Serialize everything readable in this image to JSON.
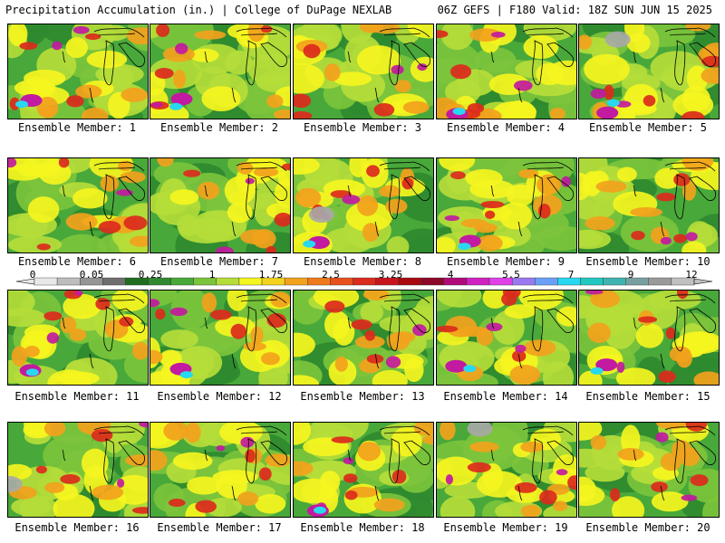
{
  "header": {
    "left": "Precipitation Accumulation (in.) | College of DuPage NEXLAB",
    "right": "06Z GEFS | F180 Valid: 18Z SUN JUN 15 2025"
  },
  "caption_prefix": "Ensemble Member: ",
  "members": [
    1,
    2,
    3,
    4,
    5,
    6,
    7,
    8,
    9,
    10,
    11,
    12,
    13,
    14,
    15,
    16,
    17,
    18,
    19,
    20
  ],
  "colorbar": {
    "labels": [
      "0",
      "0.05",
      "0.25",
      "1",
      "1.75",
      "2.5",
      "3.25",
      "4",
      "5.5",
      "7",
      "9",
      "12"
    ],
    "colors": [
      "#e8e8e8",
      "#bdbdbd",
      "#959595",
      "#6e6e6e",
      "#1f6e1f",
      "#2f8a2f",
      "#49a83a",
      "#7cc43c",
      "#b5dd3a",
      "#f5f520",
      "#f2d21c",
      "#f2a21c",
      "#ef7a1c",
      "#e8501c",
      "#dc2a1c",
      "#c8141c",
      "#a80a10",
      "#8c0828",
      "#b00a78",
      "#d020c0",
      "#e040e8",
      "#9a78f0",
      "#6aa0f8",
      "#28d8f0",
      "#20c8c0",
      "#40b4b0",
      "#78a0a0",
      "#9a9a9a",
      "#c0c0c0"
    ]
  },
  "map_colors": {
    "green_dark": "#2f8a2f",
    "green": "#49a83a",
    "green_light": "#7cc43c",
    "yellow_green": "#b5dd3a",
    "yellow": "#f5f520",
    "orange": "#f2a21c",
    "red": "#dc2a1c",
    "magenta": "#c21aa0",
    "cyan": "#28d8f0",
    "gray": "#a8a8a8"
  }
}
